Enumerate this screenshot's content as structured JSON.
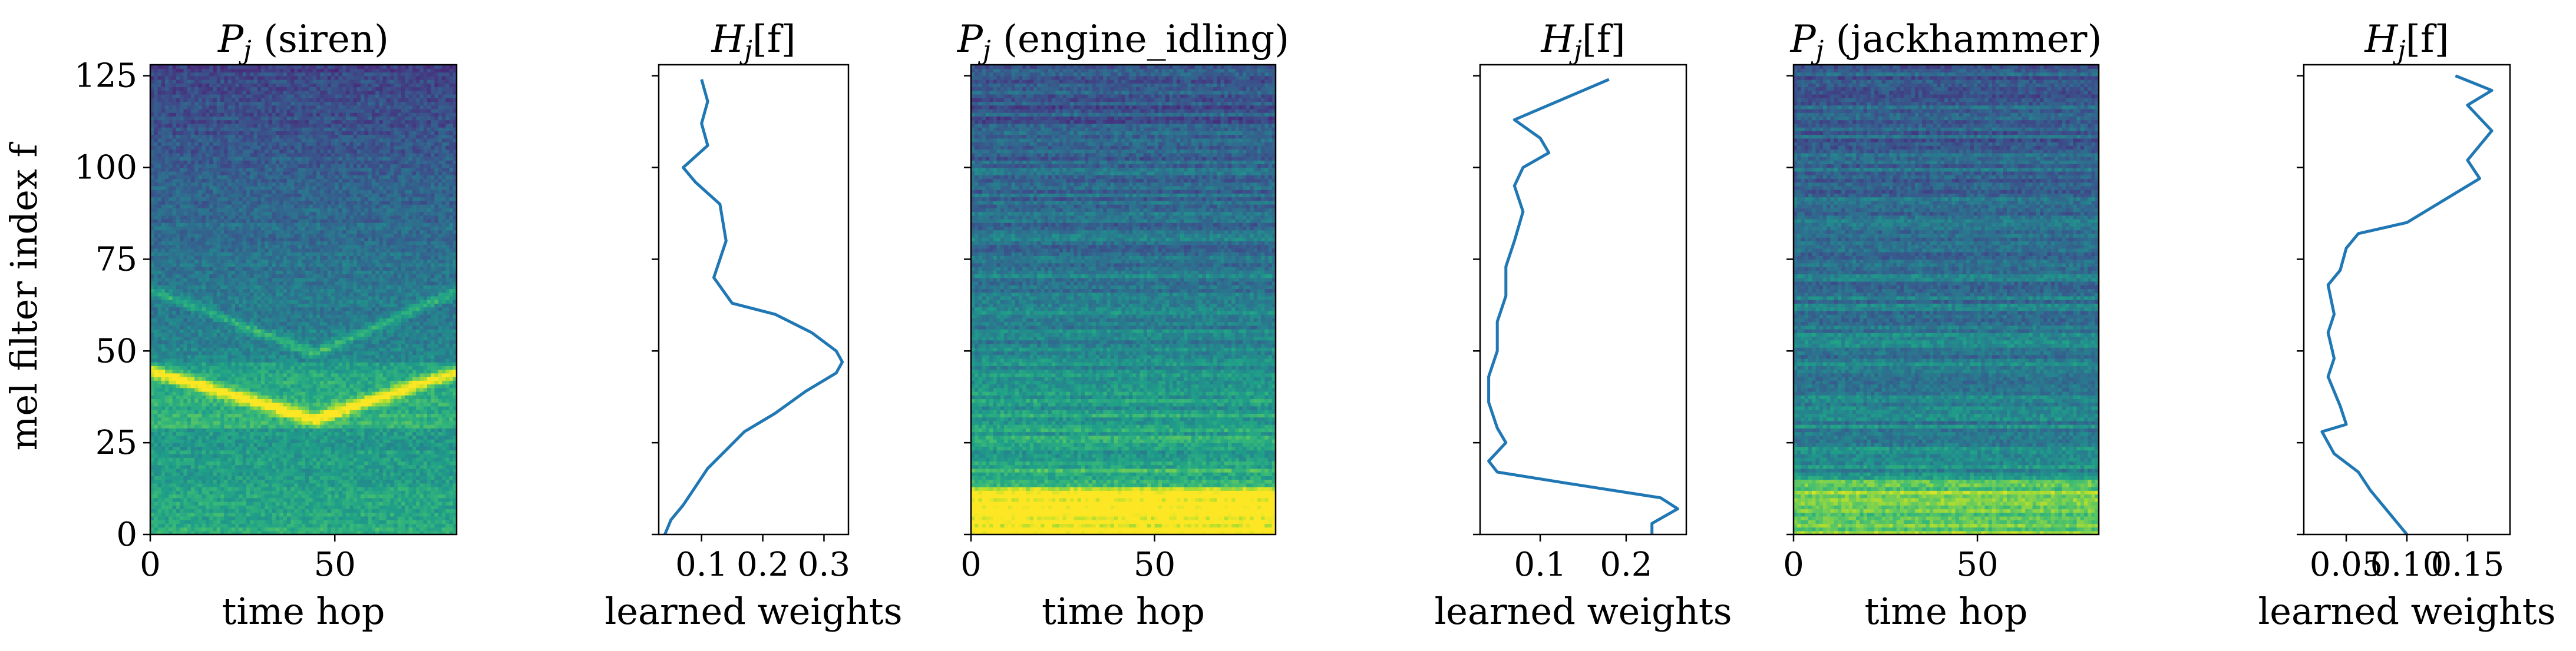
{
  "colors": {
    "line": "#1f77b4",
    "viridis": [
      "#440154",
      "#482878",
      "#3e4a89",
      "#31688e",
      "#26828e",
      "#1f9e89",
      "#35b779",
      "#6dcd59",
      "#b4de2c",
      "#fde725"
    ]
  },
  "ylabel": "mel filter index f",
  "chart_data": [
    {
      "type": "heatmap",
      "title_main": "P",
      "title_sub": "j",
      "title_suffix": " (siren)",
      "xlabel": "time hop",
      "ylabel": "mel filter index f",
      "xlim": [
        0,
        83
      ],
      "ylim": [
        0,
        128
      ],
      "xticks": [
        "0",
        "50"
      ],
      "xtick_values": [
        0,
        50
      ],
      "yticks": [
        "0",
        "25",
        "50",
        "75",
        "100",
        "125"
      ],
      "ytick_values": [
        0,
        25,
        50,
        75,
        100,
        125
      ],
      "pattern": "siren",
      "sweep": {
        "lower_high": 44,
        "lower_low": 31,
        "upper_high": 66,
        "upper_low": 49,
        "turn_x": 44
      }
    },
    {
      "type": "line",
      "title_main": "H",
      "title_sub": "j",
      "title_suffix": "[f]",
      "xlabel": "learned weights",
      "xlim": [
        0.03,
        0.34
      ],
      "ylim": [
        0,
        128
      ],
      "xticks": [
        "0.1",
        "0.2",
        "0.3"
      ],
      "xtick_values": [
        0.1,
        0.2,
        0.3
      ],
      "x": [
        0.1,
        0.11,
        0.1,
        0.11,
        0.07,
        0.09,
        0.13,
        0.14,
        0.12,
        0.15,
        0.22,
        0.28,
        0.32,
        0.33,
        0.32,
        0.27,
        0.22,
        0.17,
        0.14,
        0.11,
        0.09,
        0.07,
        0.05,
        0.04
      ],
      "y": [
        124,
        118,
        112,
        106,
        100,
        96,
        90,
        80,
        70,
        63,
        60,
        55,
        50,
        47,
        44,
        39,
        33,
        28,
        23,
        18,
        13,
        8,
        4,
        0
      ]
    },
    {
      "type": "heatmap",
      "title_main": "P",
      "title_sub": "j",
      "title_suffix": " (engine_idling)",
      "xlabel": "time hop",
      "xlim": [
        0,
        83
      ],
      "ylim": [
        0,
        128
      ],
      "xticks": [
        "0",
        "50"
      ],
      "xtick_values": [
        0,
        50
      ],
      "pattern": "engine"
    },
    {
      "type": "line",
      "title_main": "H",
      "title_sub": "j",
      "title_suffix": "[f]",
      "xlabel": "learned weights",
      "xlim": [
        0.03,
        0.27
      ],
      "ylim": [
        0,
        128
      ],
      "xticks": [
        "0.1",
        "0.2"
      ],
      "xtick_values": [
        0.1,
        0.2
      ],
      "x": [
        0.18,
        0.12,
        0.07,
        0.1,
        0.11,
        0.08,
        0.07,
        0.08,
        0.07,
        0.06,
        0.06,
        0.05,
        0.05,
        0.04,
        0.04,
        0.05,
        0.06,
        0.04,
        0.05,
        0.13,
        0.24,
        0.26,
        0.23,
        0.23
      ],
      "y": [
        124,
        118,
        113,
        108,
        104,
        100,
        95,
        88,
        80,
        73,
        65,
        58,
        50,
        43,
        36,
        29,
        25,
        20,
        17,
        14,
        10,
        7,
        3,
        0
      ]
    },
    {
      "type": "heatmap",
      "title_main": "P",
      "title_sub": "j",
      "title_suffix": " (jackhammer)",
      "xlabel": "time hop",
      "xlim": [
        0,
        83
      ],
      "ylim": [
        0,
        128
      ],
      "xticks": [
        "0",
        "50"
      ],
      "xtick_values": [
        0,
        50
      ],
      "pattern": "jackhammer"
    },
    {
      "type": "line",
      "title_main": "H",
      "title_sub": "j",
      "title_suffix": "[f]",
      "xlabel": "learned weights",
      "xlim": [
        0.015,
        0.185
      ],
      "ylim": [
        0,
        128
      ],
      "xticks": [
        "0.05",
        "0.10",
        "0.15"
      ],
      "xtick_values": [
        0.05,
        0.1,
        0.15
      ],
      "x": [
        0.14,
        0.17,
        0.15,
        0.17,
        0.15,
        0.16,
        0.14,
        0.1,
        0.06,
        0.05,
        0.045,
        0.035,
        0.04,
        0.035,
        0.04,
        0.035,
        0.045,
        0.05,
        0.03,
        0.04,
        0.06,
        0.07,
        0.08,
        0.1
      ],
      "y": [
        125,
        121,
        117,
        110,
        102,
        97,
        93,
        85,
        82,
        78,
        72,
        68,
        60,
        55,
        48,
        43,
        35,
        30,
        28,
        22,
        17,
        12,
        8,
        0
      ]
    }
  ]
}
